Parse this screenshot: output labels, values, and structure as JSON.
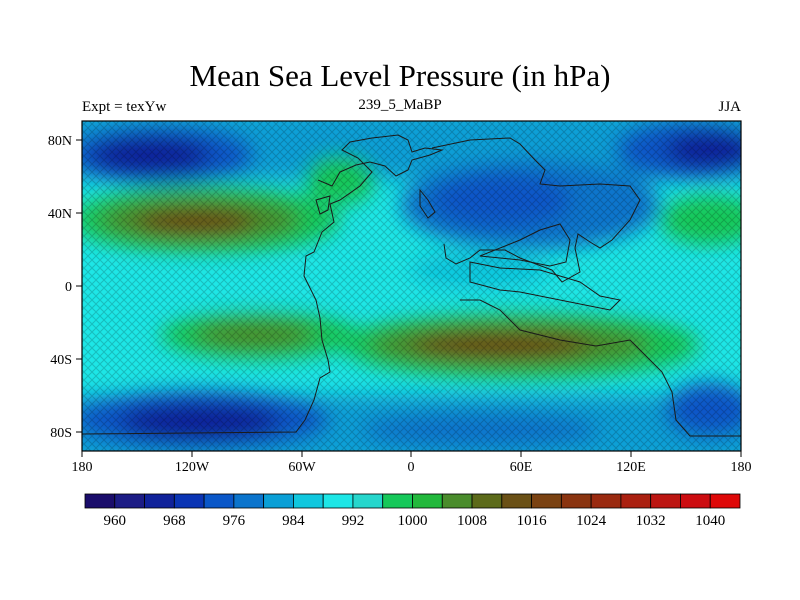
{
  "title": "Mean Sea Level Pressure (in hPa)",
  "subtitle_left": "Expt = texYw",
  "subtitle_center": "239_5_MaBP",
  "subtitle_right": "JJA",
  "map": {
    "x_ticks": [
      "180",
      "120W",
      "60W",
      "0",
      "60E",
      "120E",
      "180"
    ],
    "y_ticks": [
      "80N",
      "40N",
      "0",
      "40S",
      "80S"
    ],
    "lon_range": [
      -180,
      180
    ],
    "lat_range": [
      -90,
      90
    ]
  },
  "colorbar": {
    "labels": [
      "960",
      "968",
      "976",
      "984",
      "992",
      "1000",
      "1008",
      "1016",
      "1024",
      "1032",
      "1040"
    ],
    "colors": [
      "#1a0d6b",
      "#1c1c85",
      "#10229a",
      "#0a34b4",
      "#0a57c8",
      "#0b74cc",
      "#0a9fd6",
      "#10c7de",
      "#1de6e6",
      "#26d6cc",
      "#16c85a",
      "#22b83c",
      "#4a8c2c",
      "#5c6a1a",
      "#6a5016",
      "#7a4212",
      "#8a3410",
      "#9a2a10",
      "#aa2010",
      "#bc1612",
      "#cc0c10",
      "#de0808"
    ]
  }
}
